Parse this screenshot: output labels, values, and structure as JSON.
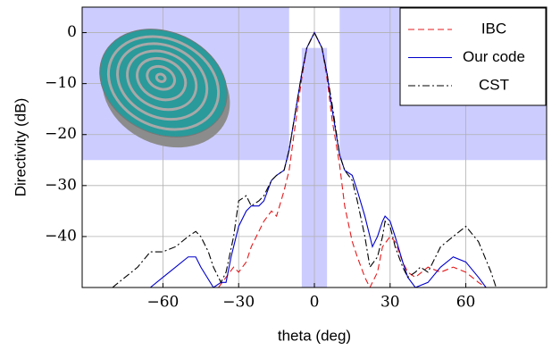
{
  "chart_data": {
    "type": "line",
    "x_label": "theta (deg)",
    "y_label": "Directivity (dB)",
    "xlim": [
      -92,
      92
    ],
    "ylim": [
      -50,
      5
    ],
    "xticks": [
      {
        "value": -60,
        "label": "−60"
      },
      {
        "value": -30,
        "label": "−30"
      },
      0,
      30,
      60
    ],
    "yticks": [
      0,
      {
        "value": -10,
        "label": "−10"
      },
      {
        "value": -20,
        "label": "−20"
      },
      {
        "value": -30,
        "label": "−30"
      },
      {
        "value": -40,
        "label": "−40"
      }
    ],
    "grid": true,
    "legend": "top-right",
    "regions": [
      {
        "x": [
          -92,
          -10
        ],
        "y": [
          -25,
          5
        ]
      },
      {
        "x": [
          10,
          92
        ],
        "y": [
          -25,
          5
        ]
      },
      {
        "x": [
          -5,
          5
        ],
        "y": [
          -50,
          -3
        ]
      }
    ],
    "region_color": "#ccccff",
    "series": [
      {
        "name": "IBC",
        "color": "#e41a1c",
        "style": "dashed",
        "x": [
          -38,
          -35,
          -32,
          -30,
          -27,
          -25,
          -22,
          -20,
          -17,
          -15,
          -12,
          -10,
          -7,
          -5,
          -3,
          0,
          3,
          5,
          7,
          10,
          12,
          15,
          17,
          20,
          22,
          25,
          27,
          30,
          32,
          35,
          37,
          40,
          45,
          50,
          55,
          60,
          65,
          68
        ],
        "values": [
          -50,
          -48,
          -46,
          -47,
          -45,
          -42,
          -39,
          -37,
          -35,
          -36,
          -31,
          -27,
          -16,
          -9,
          -3,
          0,
          -3,
          -9,
          -17,
          -26,
          -34,
          -41,
          -44,
          -48,
          -50,
          -47,
          -42,
          -40,
          -41,
          -45,
          -47,
          -48,
          -46,
          -47,
          -46,
          -47,
          -49,
          -50
        ]
      },
      {
        "name": "Our code",
        "color": "#0000cc",
        "style": "solid",
        "x": [
          -65,
          -60,
          -55,
          -50,
          -47,
          -45,
          -40,
          -37,
          -35,
          -33,
          -30,
          -27,
          -25,
          -22,
          -20,
          -17,
          -15,
          -12,
          -10,
          -7,
          -5,
          -3,
          0,
          3,
          5,
          7,
          10,
          12,
          15,
          17,
          20,
          22,
          23,
          25,
          27,
          28,
          30,
          32,
          35,
          37,
          40,
          45,
          50,
          55,
          60,
          65,
          68
        ],
        "values": [
          -50,
          -48,
          -46,
          -44,
          -44,
          -46,
          -50,
          -49,
          -49,
          -44,
          -38,
          -35,
          -34,
          -34,
          -33,
          -29,
          -28,
          -27,
          -23,
          -14,
          -8,
          -3,
          0,
          -3,
          -8,
          -15,
          -24,
          -27,
          -28,
          -31,
          -36,
          -40,
          -42,
          -40,
          -37,
          -36,
          -37,
          -40,
          -45,
          -48,
          -50,
          -49,
          -46,
          -44,
          -45,
          -48,
          -50
        ]
      },
      {
        "name": "CST",
        "color": "#000000",
        "style": "dashdot",
        "x": [
          -80,
          -75,
          -70,
          -65,
          -60,
          -55,
          -50,
          -47,
          -45,
          -42,
          -40,
          -37,
          -35,
          -32,
          -30,
          -27,
          -25,
          -22,
          -20,
          -17,
          -15,
          -12,
          -10,
          -7,
          -5,
          -3,
          0,
          3,
          5,
          7,
          10,
          12,
          15,
          17,
          20,
          22,
          25,
          27,
          28,
          30,
          32,
          35,
          37,
          40,
          42,
          45,
          50,
          55,
          60,
          65,
          70,
          72
        ],
        "values": [
          -50,
          -48,
          -46,
          -43,
          -43,
          -42,
          -40,
          -39,
          -40,
          -43,
          -46,
          -49,
          -47,
          -40,
          -33,
          -32,
          -34,
          -33,
          -32,
          -29,
          -28,
          -27,
          -23,
          -14,
          -8,
          -3,
          0,
          -3,
          -8,
          -14,
          -24,
          -27,
          -29,
          -33,
          -40,
          -46,
          -44,
          -40,
          -37,
          -38,
          -42,
          -46,
          -48,
          -47,
          -46,
          -47,
          -42,
          -40,
          -38,
          -41,
          -47,
          -50
        ]
      }
    ]
  }
}
